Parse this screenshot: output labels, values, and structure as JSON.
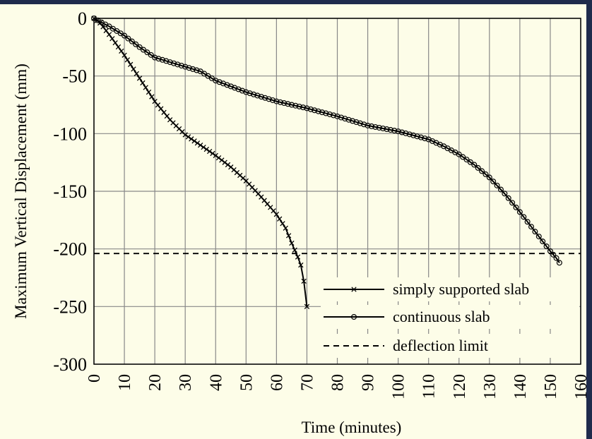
{
  "chart_data": {
    "type": "line",
    "title": "",
    "xlabel": "Time (minutes)",
    "ylabel": "Maximum Vertical Displacement (mm)",
    "xlim": [
      0,
      160
    ],
    "ylim": [
      -300,
      0
    ],
    "xticks": [
      0,
      10,
      20,
      30,
      40,
      50,
      60,
      70,
      80,
      90,
      100,
      110,
      120,
      130,
      140,
      150,
      160
    ],
    "yticks": [
      0,
      -50,
      -100,
      -150,
      -200,
      -250,
      -300
    ],
    "grid": true,
    "legend_position": "bottom-right",
    "series": [
      {
        "name": "simply supported slab",
        "marker": "x",
        "points": [
          [
            0,
            0
          ],
          [
            2,
            -4
          ],
          [
            5,
            -14
          ],
          [
            10,
            -32
          ],
          [
            15,
            -52
          ],
          [
            20,
            -72
          ],
          [
            25,
            -88
          ],
          [
            30,
            -101
          ],
          [
            35,
            -110
          ],
          [
            40,
            -119
          ],
          [
            45,
            -129
          ],
          [
            50,
            -141
          ],
          [
            55,
            -155
          ],
          [
            60,
            -170
          ],
          [
            63,
            -182
          ],
          [
            65,
            -195
          ],
          [
            67,
            -207
          ],
          [
            68,
            -214
          ],
          [
            69,
            -228
          ],
          [
            70,
            -250
          ]
        ]
      },
      {
        "name": "continuous slab",
        "marker": "circle",
        "points": [
          [
            0,
            0
          ],
          [
            5,
            -7
          ],
          [
            10,
            -15
          ],
          [
            15,
            -25
          ],
          [
            20,
            -34
          ],
          [
            25,
            -38
          ],
          [
            30,
            -42
          ],
          [
            35,
            -46
          ],
          [
            40,
            -54
          ],
          [
            45,
            -59
          ],
          [
            50,
            -64
          ],
          [
            60,
            -72
          ],
          [
            70,
            -78
          ],
          [
            80,
            -85
          ],
          [
            90,
            -93
          ],
          [
            100,
            -98
          ],
          [
            110,
            -105
          ],
          [
            115,
            -111
          ],
          [
            120,
            -118
          ],
          [
            125,
            -127
          ],
          [
            130,
            -138
          ],
          [
            135,
            -152
          ],
          [
            140,
            -168
          ],
          [
            145,
            -185
          ],
          [
            150,
            -202
          ],
          [
            152,
            -208
          ],
          [
            153,
            -212
          ]
        ]
      },
      {
        "name": "deflection limit",
        "style": "dashed",
        "points": [
          [
            0,
            -204
          ],
          [
            160,
            -204
          ]
        ]
      }
    ]
  }
}
